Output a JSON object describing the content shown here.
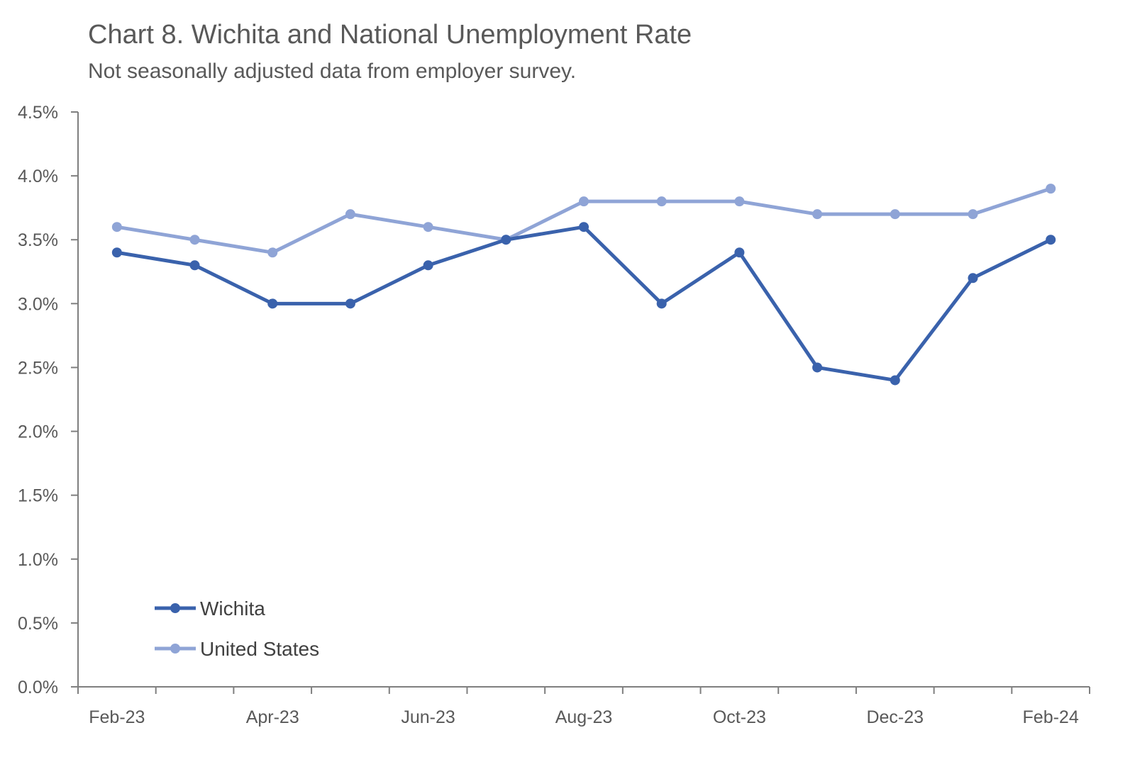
{
  "chart_data": {
    "type": "line",
    "title": "Chart 8. Wichita and National Unemployment Rate",
    "subtitle": "Not seasonally adjusted data from employer survey.",
    "xlabel": "",
    "ylabel": "",
    "x": [
      "Feb-23",
      "Mar-23",
      "Apr-23",
      "May-23",
      "Jun-23",
      "Jul-23",
      "Aug-23",
      "Sep-23",
      "Oct-23",
      "Nov-23",
      "Dec-23",
      "Jan-24",
      "Feb-24"
    ],
    "x_tick_labels": [
      "Feb-23",
      "",
      "Apr-23",
      "",
      "Jun-23",
      "",
      "Aug-23",
      "",
      "Oct-23",
      "",
      "Dec-23",
      "",
      "Feb-24"
    ],
    "ylim": [
      0,
      4.5
    ],
    "y_ticks": [
      0,
      0.5,
      1.0,
      1.5,
      2.0,
      2.5,
      3.0,
      3.5,
      4.0,
      4.5
    ],
    "y_tick_labels": [
      "0.0%",
      "0.5%",
      "1.0%",
      "1.5%",
      "2.0%",
      "2.5%",
      "3.0%",
      "3.5%",
      "4.0%",
      "4.5%"
    ],
    "grid": false,
    "legend_position": "bottom-left",
    "series": [
      {
        "name": "Wichita",
        "color": "#3A62AC",
        "values": [
          3.4,
          3.3,
          3.0,
          3.0,
          3.3,
          3.5,
          3.6,
          3.0,
          3.4,
          2.5,
          2.4,
          3.2,
          3.5
        ]
      },
      {
        "name": "United States",
        "color": "#8FA4D6",
        "values": [
          3.6,
          3.5,
          3.4,
          3.7,
          3.6,
          3.5,
          3.8,
          3.8,
          3.8,
          3.7,
          3.7,
          3.7,
          3.9
        ]
      }
    ]
  }
}
